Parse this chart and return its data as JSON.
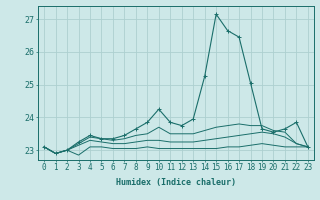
{
  "xlabel": "Humidex (Indice chaleur)",
  "background_color": "#cde8e8",
  "grid_color": "#add0d0",
  "line_color": "#1a6e6a",
  "x_values": [
    0,
    1,
    2,
    3,
    4,
    5,
    6,
    7,
    8,
    9,
    10,
    11,
    12,
    13,
    14,
    15,
    16,
    17,
    18,
    19,
    20,
    21,
    22,
    23
  ],
  "series": [
    [
      23.1,
      22.9,
      23.0,
      22.85,
      23.1,
      23.1,
      23.05,
      23.05,
      23.05,
      23.1,
      23.05,
      23.05,
      23.05,
      23.05,
      23.05,
      23.05,
      23.1,
      23.1,
      23.15,
      23.2,
      23.15,
      23.1,
      23.1,
      23.1
    ],
    [
      23.1,
      22.9,
      23.0,
      23.15,
      23.3,
      23.25,
      23.2,
      23.2,
      23.25,
      23.3,
      23.3,
      23.25,
      23.25,
      23.25,
      23.3,
      23.35,
      23.4,
      23.45,
      23.5,
      23.55,
      23.5,
      23.4,
      23.2,
      23.1
    ],
    [
      23.1,
      22.9,
      23.0,
      23.2,
      23.4,
      23.35,
      23.3,
      23.35,
      23.45,
      23.5,
      23.7,
      23.5,
      23.5,
      23.5,
      23.6,
      23.7,
      23.75,
      23.8,
      23.75,
      23.75,
      23.6,
      23.55,
      23.2,
      23.1
    ],
    [
      23.1,
      22.9,
      23.0,
      23.25,
      23.45,
      23.35,
      23.35,
      23.45,
      23.65,
      23.85,
      24.25,
      23.85,
      23.75,
      23.95,
      25.25,
      27.15,
      26.65,
      26.45,
      25.05,
      23.65,
      23.55,
      23.65,
      23.85,
      23.1
    ]
  ],
  "ylim": [
    22.7,
    27.4
  ],
  "yticks": [
    23,
    24,
    25,
    26,
    27
  ],
  "xlim": [
    -0.5,
    23.5
  ],
  "tick_fontsize": 5.5,
  "label_fontsize": 6.0
}
